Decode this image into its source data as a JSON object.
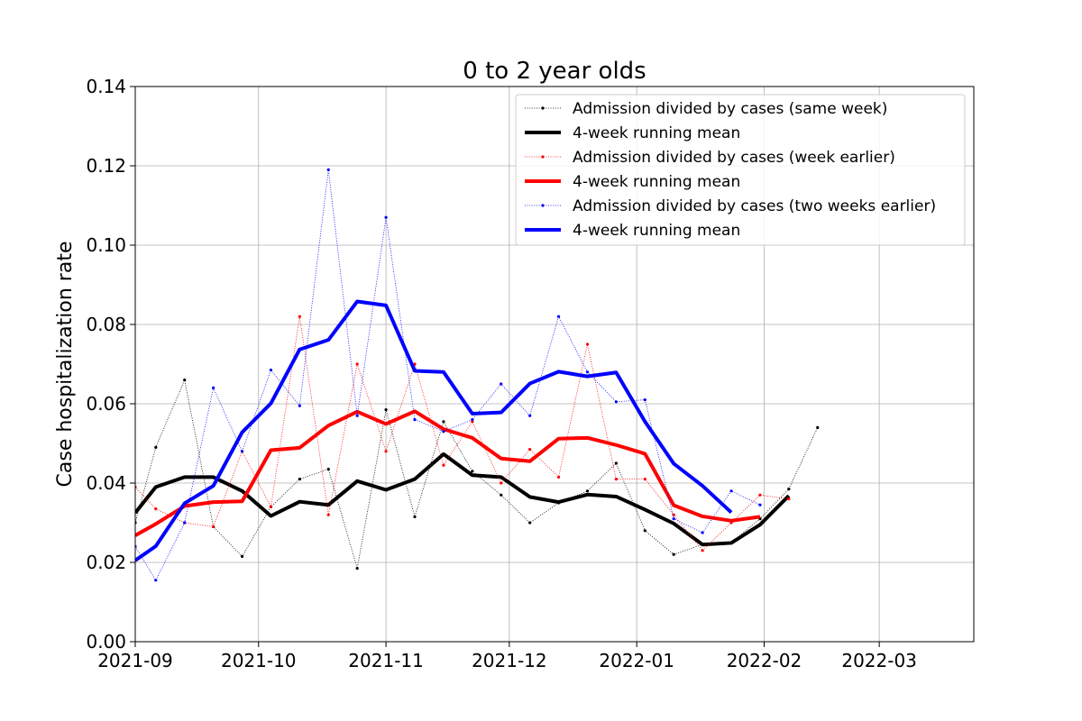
{
  "chart_data": {
    "type": "line",
    "title": "0 to 2 year olds",
    "xlabel": "",
    "ylabel": "Case hospitalization rate",
    "xlim": [
      "2021-09-01",
      "2022-03-24"
    ],
    "ylim": [
      0,
      0.14
    ],
    "x_ticks": [
      "2021-09",
      "2021-10",
      "2021-11",
      "2021-12",
      "2022-01",
      "2022-02",
      "2022-03"
    ],
    "y_ticks": [
      "0.00",
      "0.02",
      "0.04",
      "0.06",
      "0.08",
      "0.10",
      "0.12",
      "0.14"
    ],
    "grid": true,
    "legend_position": "top-right",
    "series": [
      {
        "name": "Admission divided by cases (same week)",
        "color": "#000000",
        "style": "dotted-markers",
        "x": [
          "2021-09-01",
          "2021-09-06",
          "2021-09-13",
          "2021-09-20",
          "2021-09-27",
          "2021-10-04",
          "2021-10-11",
          "2021-10-18",
          "2021-10-25",
          "2021-11-01",
          "2021-11-08",
          "2021-11-15",
          "2021-11-22",
          "2021-11-29",
          "2021-12-06",
          "2021-12-13",
          "2021-12-20",
          "2021-12-27",
          "2022-01-03",
          "2022-01-10",
          "2022-01-17",
          "2022-01-24",
          "2022-01-31",
          "2022-02-07",
          "2022-02-14"
        ],
        "values": [
          0.03,
          0.049,
          0.066,
          0.029,
          0.0215,
          0.034,
          0.041,
          0.0435,
          0.0185,
          0.0585,
          0.0315,
          0.0555,
          0.043,
          0.037,
          0.03,
          0.035,
          0.038,
          0.045,
          0.028,
          0.022,
          0.0245,
          0.025,
          0.031,
          0.0385,
          0.054
        ]
      },
      {
        "name": "4-week running mean",
        "color": "#000000",
        "style": "thick",
        "x": [
          "2021-09-01",
          "2021-09-06",
          "2021-09-13",
          "2021-09-20",
          "2021-09-27",
          "2021-10-04",
          "2021-10-11",
          "2021-10-18",
          "2021-10-25",
          "2021-11-01",
          "2021-11-08",
          "2021-11-15",
          "2021-11-22",
          "2021-11-29",
          "2021-12-06",
          "2021-12-13",
          "2021-12-20",
          "2021-12-27",
          "2022-01-03",
          "2022-01-10",
          "2022-01-17",
          "2022-01-24",
          "2022-01-31",
          "2022-02-07"
        ],
        "values": [
          0.0325,
          0.039,
          0.0415,
          0.0415,
          0.038,
          0.0317,
          0.0353,
          0.0345,
          0.0405,
          0.0383,
          0.041,
          0.0473,
          0.042,
          0.0415,
          0.0365,
          0.0352,
          0.0371,
          0.0366,
          0.0333,
          0.0298,
          0.0245,
          0.0249,
          0.0295,
          0.0368
        ]
      },
      {
        "name": "Admission divided by cases (week earlier)",
        "color": "#ff0000",
        "style": "dotted-markers",
        "x": [
          "2021-09-01",
          "2021-09-06",
          "2021-09-13",
          "2021-09-20",
          "2021-09-27",
          "2021-10-04",
          "2021-10-11",
          "2021-10-18",
          "2021-10-25",
          "2021-11-01",
          "2021-11-08",
          "2021-11-15",
          "2021-11-22",
          "2021-11-29",
          "2021-12-06",
          "2021-12-13",
          "2021-12-20",
          "2021-12-27",
          "2022-01-03",
          "2022-01-10",
          "2022-01-17",
          "2022-01-24",
          "2022-01-31",
          "2022-02-07"
        ],
        "values": [
          0.039,
          0.0335,
          0.03,
          0.029,
          0.048,
          0.034,
          0.082,
          0.032,
          0.07,
          0.048,
          0.07,
          0.0445,
          0.0555,
          0.04,
          0.0485,
          0.0415,
          0.075,
          0.041,
          0.041,
          0.032,
          0.023,
          0.03,
          0.037,
          0.036
        ]
      },
      {
        "name": "4-week running mean",
        "color": "#ff0000",
        "style": "thick",
        "x": [
          "2021-09-01",
          "2021-09-06",
          "2021-09-13",
          "2021-09-20",
          "2021-09-27",
          "2021-10-04",
          "2021-10-11",
          "2021-10-18",
          "2021-10-25",
          "2021-11-01",
          "2021-11-08",
          "2021-11-15",
          "2021-11-22",
          "2021-11-29",
          "2021-12-06",
          "2021-12-13",
          "2021-12-20",
          "2021-12-27",
          "2022-01-03",
          "2022-01-10",
          "2022-01-17",
          "2022-01-24",
          "2022-01-31"
        ],
        "values": [
          0.0268,
          0.0297,
          0.0342,
          0.0352,
          0.0354,
          0.0483,
          0.0489,
          0.0545,
          0.058,
          0.0549,
          0.0581,
          0.0536,
          0.0514,
          0.0462,
          0.0455,
          0.0512,
          0.0514,
          0.0496,
          0.0474,
          0.0344,
          0.0316,
          0.0305,
          0.0315
        ]
      },
      {
        "name": "Admission divided by cases (two weeks earlier)",
        "color": "#0000ff",
        "style": "dotted-markers",
        "x": [
          "2021-09-01",
          "2021-09-06",
          "2021-09-13",
          "2021-09-20",
          "2021-09-27",
          "2021-10-04",
          "2021-10-11",
          "2021-10-18",
          "2021-10-25",
          "2021-11-01",
          "2021-11-08",
          "2021-11-15",
          "2021-11-22",
          "2021-11-29",
          "2021-12-06",
          "2021-12-13",
          "2021-12-20",
          "2021-12-27",
          "2022-01-03",
          "2022-01-10",
          "2022-01-17",
          "2022-01-24",
          "2022-01-31"
        ],
        "values": [
          0.024,
          0.0155,
          0.03,
          0.064,
          0.048,
          0.0685,
          0.0595,
          0.119,
          0.057,
          0.107,
          0.056,
          0.053,
          0.056,
          0.065,
          0.057,
          0.082,
          0.068,
          0.0605,
          0.061,
          0.031,
          0.0275,
          0.038,
          0.0345
        ]
      },
      {
        "name": "4-week running mean",
        "color": "#0000ff",
        "style": "thick",
        "x": [
          "2021-09-01",
          "2021-09-06",
          "2021-09-13",
          "2021-09-20",
          "2021-09-27",
          "2021-10-04",
          "2021-10-11",
          "2021-10-18",
          "2021-10-25",
          "2021-11-01",
          "2021-11-08",
          "2021-11-15",
          "2021-11-22",
          "2021-11-29",
          "2021-12-06",
          "2021-12-13",
          "2021-12-20",
          "2021-12-27",
          "2022-01-03",
          "2022-01-10",
          "2022-01-17",
          "2022-01-24"
        ],
        "values": [
          0.0205,
          0.0241,
          0.0349,
          0.0393,
          0.0528,
          0.0601,
          0.0737,
          0.0761,
          0.0858,
          0.0848,
          0.0683,
          0.068,
          0.0575,
          0.0578,
          0.0651,
          0.0681,
          0.0669,
          0.0679,
          0.0555,
          0.0449,
          0.0393,
          0.0326
        ]
      }
    ]
  }
}
